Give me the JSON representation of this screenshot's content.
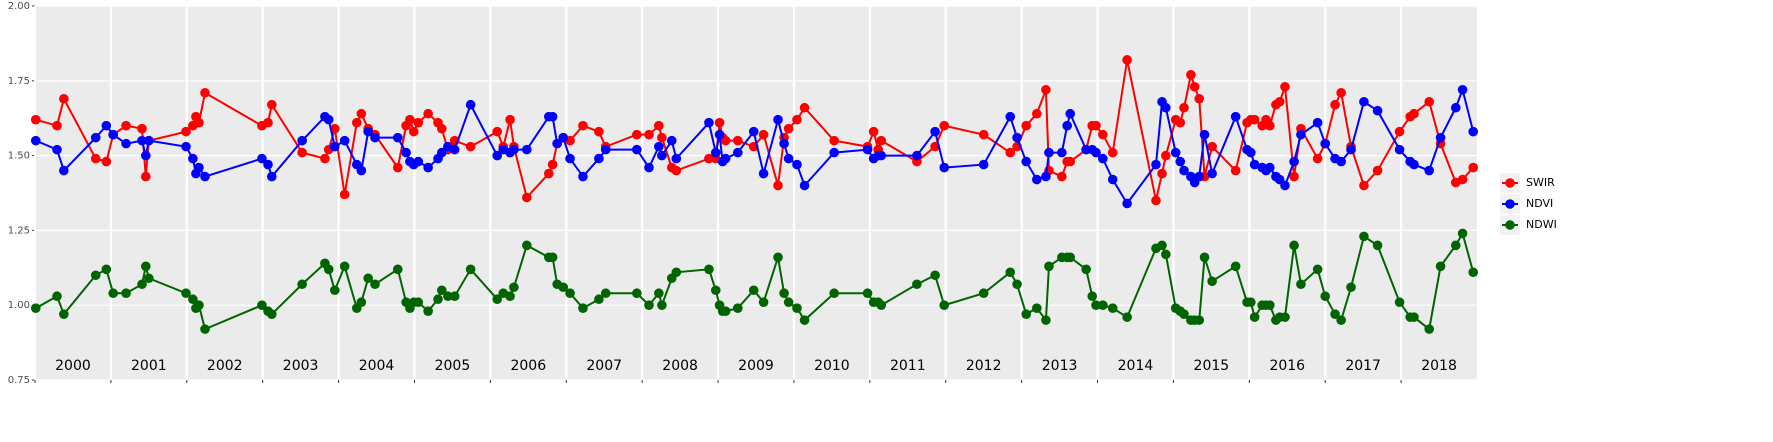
{
  "chart_data": {
    "type": "line",
    "xlim": [
      2000,
      2019
    ],
    "xticks": [
      {
        "value": 2000.5,
        "label": "2000"
      },
      {
        "value": 2001.5,
        "label": "2001"
      },
      {
        "value": 2002.5,
        "label": "2002"
      },
      {
        "value": 2003.5,
        "label": "2003"
      },
      {
        "value": 2004.5,
        "label": "2004"
      },
      {
        "value": 2005.5,
        "label": "2005"
      },
      {
        "value": 2006.5,
        "label": "2006"
      },
      {
        "value": 2007.5,
        "label": "2007"
      },
      {
        "value": 2008.5,
        "label": "2008"
      },
      {
        "value": 2009.5,
        "label": "2009"
      },
      {
        "value": 2010.5,
        "label": "2010"
      },
      {
        "value": 2011.5,
        "label": "2011"
      },
      {
        "value": 2012.5,
        "label": "2012"
      },
      {
        "value": 2013.5,
        "label": "2013"
      },
      {
        "value": 2014.5,
        "label": "2014"
      },
      {
        "value": 2015.5,
        "label": "2015"
      },
      {
        "value": 2016.5,
        "label": "2016"
      },
      {
        "value": 2017.5,
        "label": "2017"
      },
      {
        "value": 2018.5,
        "label": "2018"
      }
    ],
    "ylim": [
      0.75,
      2.0
    ],
    "yticks": [
      0.75,
      {
        "value": 1.0,
        "label": "1.00"
      },
      1.25,
      {
        "value": 1.5,
        "label": "1.50"
      },
      1.75,
      {
        "value": 2.0,
        "label": "2.00"
      }
    ],
    "grid": true,
    "legend": "right",
    "x": [
      2000.01,
      2000.29,
      2000.38,
      2000.8,
      2000.94,
      2001.03,
      2001.2,
      2001.41,
      2001.46,
      2001.5,
      2001.99,
      2002.08,
      2002.12,
      2002.16,
      2002.24,
      2002.99,
      2003.07,
      2003.12,
      2003.52,
      2003.82,
      2003.87,
      2003.95,
      2004.08,
      2004.24,
      2004.3,
      2004.39,
      2004.48,
      2004.78,
      2004.89,
      2004.94,
      2004.99,
      2005.05,
      2005.18,
      2005.31,
      2005.36,
      2005.44,
      2005.53,
      2005.74,
      2006.09,
      2006.17,
      2006.26,
      2006.31,
      2006.48,
      2006.77,
      2006.82,
      2006.88,
      2006.96,
      2007.05,
      2007.22,
      2007.43,
      2007.52,
      2007.93,
      2008.09,
      2008.22,
      2008.26,
      2008.39,
      2008.45,
      2008.88,
      2008.97,
      2009.02,
      2009.06,
      2009.1,
      2009.26,
      2009.47,
      2009.6,
      2009.79,
      2009.87,
      2009.93,
      2010.04,
      2010.14,
      2010.53,
      2010.97,
      2011.05,
      2011.11,
      2011.15,
      2011.62,
      2011.86,
      2011.98,
      2012.5,
      2012.85,
      2012.94,
      2013.06,
      2013.2,
      2013.32,
      2013.36,
      2013.53,
      2013.6,
      2013.64,
      2013.85,
      2013.93,
      2013.98,
      2014.07,
      2014.2,
      2014.39,
      2014.77,
      2014.85,
      2014.9,
      2015.03,
      2015.09,
      2015.14,
      2015.23,
      2015.28,
      2015.34,
      2015.41,
      2015.51,
      2015.82,
      2015.97,
      2016.02,
      2016.07,
      2016.17,
      2016.22,
      2016.27,
      2016.35,
      2016.4,
      2016.47,
      2016.59,
      2016.68,
      2016.9,
      2017.0,
      2017.13,
      2017.21,
      2017.34,
      2017.51,
      2017.69,
      2017.98,
      2018.12,
      2018.17,
      2018.37,
      2018.52,
      2018.72,
      2018.81,
      2018.95
    ],
    "series": [
      {
        "name": "SWIR",
        "color": "#ff0000",
        "values": [
          1.62,
          1.6,
          1.69,
          1.49,
          1.48,
          1.57,
          1.6,
          1.59,
          1.43,
          1.55,
          1.58,
          1.6,
          1.63,
          1.61,
          1.71,
          1.6,
          1.61,
          1.67,
          1.51,
          1.49,
          1.52,
          1.59,
          1.37,
          1.61,
          1.64,
          1.59,
          1.57,
          1.46,
          1.6,
          1.62,
          1.58,
          1.61,
          1.64,
          1.61,
          1.59,
          1.52,
          1.55,
          1.53,
          1.58,
          1.53,
          1.62,
          1.53,
          1.36,
          1.44,
          1.47,
          1.54,
          1.56,
          1.55,
          1.6,
          1.58,
          1.53,
          1.57,
          1.57,
          1.6,
          1.56,
          1.46,
          1.45,
          1.49,
          1.49,
          1.61,
          1.56,
          1.55,
          1.55,
          1.53,
          1.57,
          1.4,
          1.56,
          1.59,
          1.62,
          1.66,
          1.55,
          1.53,
          1.58,
          1.52,
          1.55,
          1.48,
          1.53,
          1.6,
          1.57,
          1.51,
          1.53,
          1.6,
          1.64,
          1.72,
          1.45,
          1.43,
          1.48,
          1.48,
          1.52,
          1.6,
          1.6,
          1.57,
          1.51,
          1.82,
          1.35,
          1.44,
          1.5,
          1.62,
          1.61,
          1.66,
          1.77,
          1.73,
          1.69,
          1.43,
          1.53,
          1.45,
          1.61,
          1.62,
          1.62,
          1.6,
          1.62,
          1.6,
          1.67,
          1.68,
          1.73,
          1.43,
          1.59,
          1.49,
          1.54,
          1.67,
          1.71,
          1.53,
          1.4,
          1.45,
          1.58,
          1.63,
          1.64,
          1.68,
          1.54,
          1.41,
          1.42,
          1.46
        ]
      },
      {
        "name": "NDVI",
        "color": "#0000ff",
        "values": [
          1.55,
          1.52,
          1.45,
          1.56,
          1.6,
          1.57,
          1.54,
          1.55,
          1.5,
          1.55,
          1.53,
          1.49,
          1.44,
          1.46,
          1.43,
          1.49,
          1.47,
          1.43,
          1.55,
          1.63,
          1.62,
          1.53,
          1.55,
          1.47,
          1.45,
          1.58,
          1.56,
          1.56,
          1.51,
          1.48,
          1.47,
          1.48,
          1.46,
          1.49,
          1.51,
          1.53,
          1.52,
          1.67,
          1.5,
          1.52,
          1.51,
          1.52,
          1.52,
          1.63,
          1.63,
          1.54,
          1.56,
          1.49,
          1.43,
          1.49,
          1.52,
          1.52,
          1.46,
          1.53,
          1.5,
          1.55,
          1.49,
          1.61,
          1.51,
          1.57,
          1.48,
          1.49,
          1.51,
          1.58,
          1.44,
          1.62,
          1.54,
          1.49,
          1.47,
          1.4,
          1.51,
          1.52,
          1.49,
          1.5,
          1.5,
          1.5,
          1.58,
          1.46,
          1.47,
          1.63,
          1.56,
          1.48,
          1.42,
          1.43,
          1.51,
          1.51,
          1.6,
          1.64,
          1.52,
          1.52,
          1.51,
          1.49,
          1.42,
          1.34,
          1.47,
          1.68,
          1.66,
          1.51,
          1.48,
          1.45,
          1.43,
          1.41,
          1.43,
          1.57,
          1.44,
          1.63,
          1.52,
          1.51,
          1.47,
          1.46,
          1.45,
          1.46,
          1.43,
          1.42,
          1.4,
          1.48,
          1.57,
          1.61,
          1.54,
          1.49,
          1.48,
          1.52,
          1.68,
          1.65,
          1.52,
          1.48,
          1.47,
          1.45,
          1.56,
          1.66,
          1.72,
          1.58
        ]
      },
      {
        "name": "NDWI",
        "color": "#006400",
        "values": [
          0.99,
          1.03,
          0.97,
          1.1,
          1.12,
          1.04,
          1.04,
          1.07,
          1.13,
          1.09,
          1.04,
          1.02,
          0.99,
          1.0,
          0.92,
          1.0,
          0.98,
          0.97,
          1.07,
          1.14,
          1.12,
          1.05,
          1.13,
          0.99,
          1.01,
          1.09,
          1.07,
          1.12,
          1.01,
          0.99,
          1.01,
          1.01,
          0.98,
          1.02,
          1.05,
          1.03,
          1.03,
          1.12,
          1.02,
          1.04,
          1.03,
          1.06,
          1.2,
          1.16,
          1.16,
          1.07,
          1.06,
          1.04,
          0.99,
          1.02,
          1.04,
          1.04,
          1.0,
          1.04,
          1.0,
          1.09,
          1.11,
          1.12,
          1.05,
          1.0,
          0.98,
          0.98,
          0.99,
          1.05,
          1.01,
          1.16,
          1.04,
          1.01,
          0.99,
          0.95,
          1.04,
          1.04,
          1.01,
          1.01,
          1.0,
          1.07,
          1.1,
          1.0,
          1.04,
          1.11,
          1.07,
          0.97,
          0.99,
          0.95,
          1.13,
          1.16,
          1.16,
          1.16,
          1.12,
          1.03,
          1.0,
          1.0,
          0.99,
          0.96,
          1.19,
          1.2,
          1.17,
          0.99,
          0.98,
          0.97,
          0.95,
          0.95,
          0.95,
          1.16,
          1.08,
          1.13,
          1.01,
          1.01,
          0.96,
          1.0,
          1.0,
          1.0,
          0.95,
          0.96,
          0.96,
          1.2,
          1.07,
          1.12,
          1.03,
          0.97,
          0.95,
          1.06,
          1.23,
          1.2,
          1.01,
          0.96,
          0.96,
          0.92,
          1.13,
          1.2,
          1.24,
          1.11
        ]
      }
    ]
  }
}
